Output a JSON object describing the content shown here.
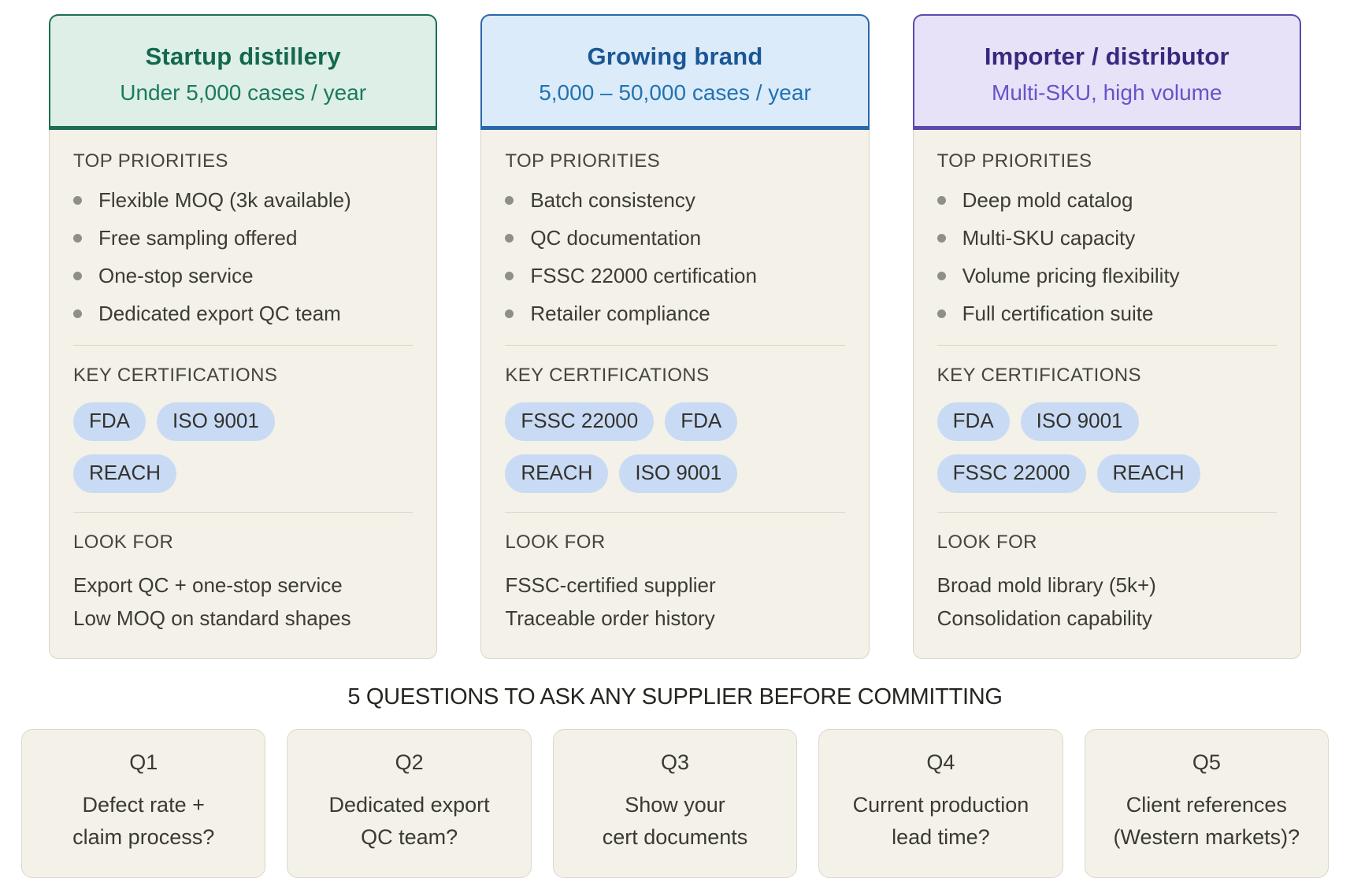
{
  "labels": {
    "priorities": "TOP PRIORITIES",
    "certifications": "KEY CERTIFICATIONS",
    "look_for": "LOOK FOR"
  },
  "badge_color": "#c9dbf4",
  "cards": [
    {
      "title": "Startup distillery",
      "subtitle": "Under 5,000 cases / year",
      "theme": {
        "header_bg": "#ddefe7",
        "accent": "#1e6e54",
        "title": "#14684e",
        "subtitle": "#1b7a5e"
      },
      "priorities": [
        "Flexible MOQ (3k available)",
        "Free sampling offered",
        "One-stop service",
        "Dedicated export QC team"
      ],
      "cert_rows": [
        [
          "FDA",
          "ISO 9001"
        ],
        [
          "REACH"
        ]
      ],
      "look_for": [
        "Export QC + one-stop service",
        "Low MOQ on standard shapes"
      ]
    },
    {
      "title": "Growing brand",
      "subtitle": "5,000 – 50,000 cases / year",
      "theme": {
        "header_bg": "#dcebf9",
        "accent": "#2a67ab",
        "title": "#1a5796",
        "subtitle": "#2173b4"
      },
      "priorities": [
        "Batch consistency",
        "QC documentation",
        "FSSC 22000 certification",
        "Retailer compliance"
      ],
      "cert_rows": [
        [
          "FSSC 22000",
          "FDA"
        ],
        [
          "REACH",
          "ISO 9001"
        ]
      ],
      "look_for": [
        "FSSC-certified supplier",
        "Traceable order history"
      ]
    },
    {
      "title": "Importer / distributor",
      "subtitle": "Multi-SKU, high volume",
      "theme": {
        "header_bg": "#e7e2f8",
        "accent": "#5b49ae",
        "title": "#38297e",
        "subtitle": "#6a52c8"
      },
      "priorities": [
        "Deep mold catalog",
        "Multi-SKU capacity",
        "Volume pricing flexibility",
        "Full certification suite"
      ],
      "cert_rows": [
        [
          "FDA",
          "ISO 9001"
        ],
        [
          "FSSC 22000",
          "REACH"
        ]
      ],
      "look_for": [
        "Broad mold library (5k+)",
        "Consolidation capability"
      ]
    }
  ],
  "questions": {
    "title": "5 QUESTIONS TO ASK ANY SUPPLIER BEFORE COMMITTING",
    "items": [
      {
        "id": "Q1",
        "line1": "Defect rate +",
        "line2": "claim process?"
      },
      {
        "id": "Q2",
        "line1": "Dedicated export",
        "line2": "QC team?"
      },
      {
        "id": "Q3",
        "line1": "Show your",
        "line2": "cert documents"
      },
      {
        "id": "Q4",
        "line1": "Current production",
        "line2": "lead time?"
      },
      {
        "id": "Q5",
        "line1": "Client references",
        "line2": "(Western markets)?"
      }
    ]
  }
}
